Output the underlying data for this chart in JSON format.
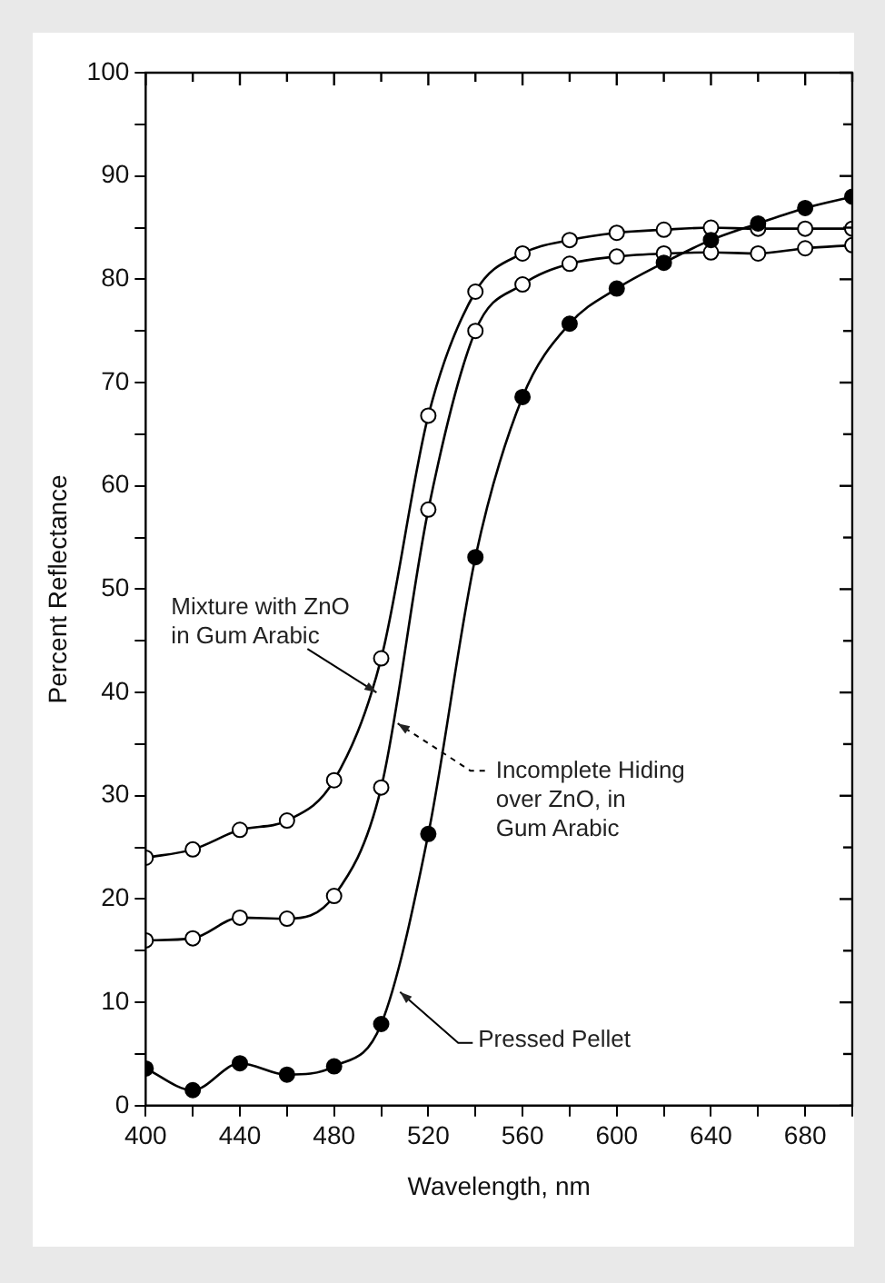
{
  "chart_data": {
    "type": "line",
    "xlabel": "Wavelength, nm",
    "ylabel": "Percent Reflectance",
    "x": [
      400,
      420,
      440,
      460,
      480,
      500,
      520,
      540,
      560,
      580,
      600,
      620,
      640,
      660,
      680,
      700
    ],
    "series": [
      {
        "color": "#000000",
        "values": [
          24,
          24.8,
          26.7,
          27.6,
          31.5,
          43.3,
          66.8,
          78.8,
          82.5,
          83.8,
          84.5,
          84.8,
          85,
          84.9,
          84.9,
          84.9
        ]
      },
      {
        "color": "#000000",
        "values": [
          16,
          16.2,
          18.2,
          18.1,
          20.3,
          30.8,
          57.7,
          75,
          79.5,
          81.5,
          82.2,
          82.5,
          82.6,
          82.5,
          83,
          83.3
        ]
      },
      {
        "color": "#000000",
        "values": [
          3.6,
          1.5,
          4.1,
          3,
          3.8,
          7.9,
          26.3,
          53.1,
          68.6,
          75.7,
          79.1,
          81.6,
          83.8,
          85.4,
          86.9,
          88
        ]
      }
    ],
    "xlim": [
      400,
      700
    ],
    "xticks": [
      400,
      {
        "value": 420,
        "label": null
      },
      440,
      {
        "value": 460,
        "label": null
      },
      480,
      {
        "value": 500,
        "label": null
      },
      520,
      {
        "value": 540,
        "label": null
      },
      560,
      {
        "value": 580,
        "label": null
      },
      600,
      {
        "value": 620,
        "label": null
      },
      640,
      {
        "value": 660,
        "label": null
      },
      680,
      {
        "value": 700,
        "label": null
      }
    ],
    "ylim": [
      0,
      100
    ],
    "yticks": [
      0,
      {
        "value": 5,
        "label": null
      },
      10,
      {
        "value": 15,
        "label": null
      },
      20,
      {
        "value": 25,
        "label": null
      },
      30,
      {
        "value": 35,
        "label": null
      },
      40,
      {
        "value": 45,
        "label": null
      },
      50,
      {
        "value": 55,
        "label": null
      },
      60,
      {
        "value": 65,
        "label": null
      },
      70,
      {
        "value": 75,
        "label": null
      },
      80,
      {
        "value": 85,
        "label": null
      },
      90,
      {
        "value": 95,
        "label": null
      },
      100
    ],
    "grid": false,
    "legend": false,
    "marker": "circle",
    "line_style": "solid",
    "annotations": [
      {
        "text": "Mixture with ZnO\nin Gum Arabic",
        "x": 498,
        "y": 40
      },
      {
        "text": "Incomplete Hiding\nover ZnO, in\nGum Arabic",
        "x": 507,
        "y": 37
      },
      {
        "text": "Pressed Pellet",
        "x": 508,
        "y": 11
      }
    ]
  }
}
